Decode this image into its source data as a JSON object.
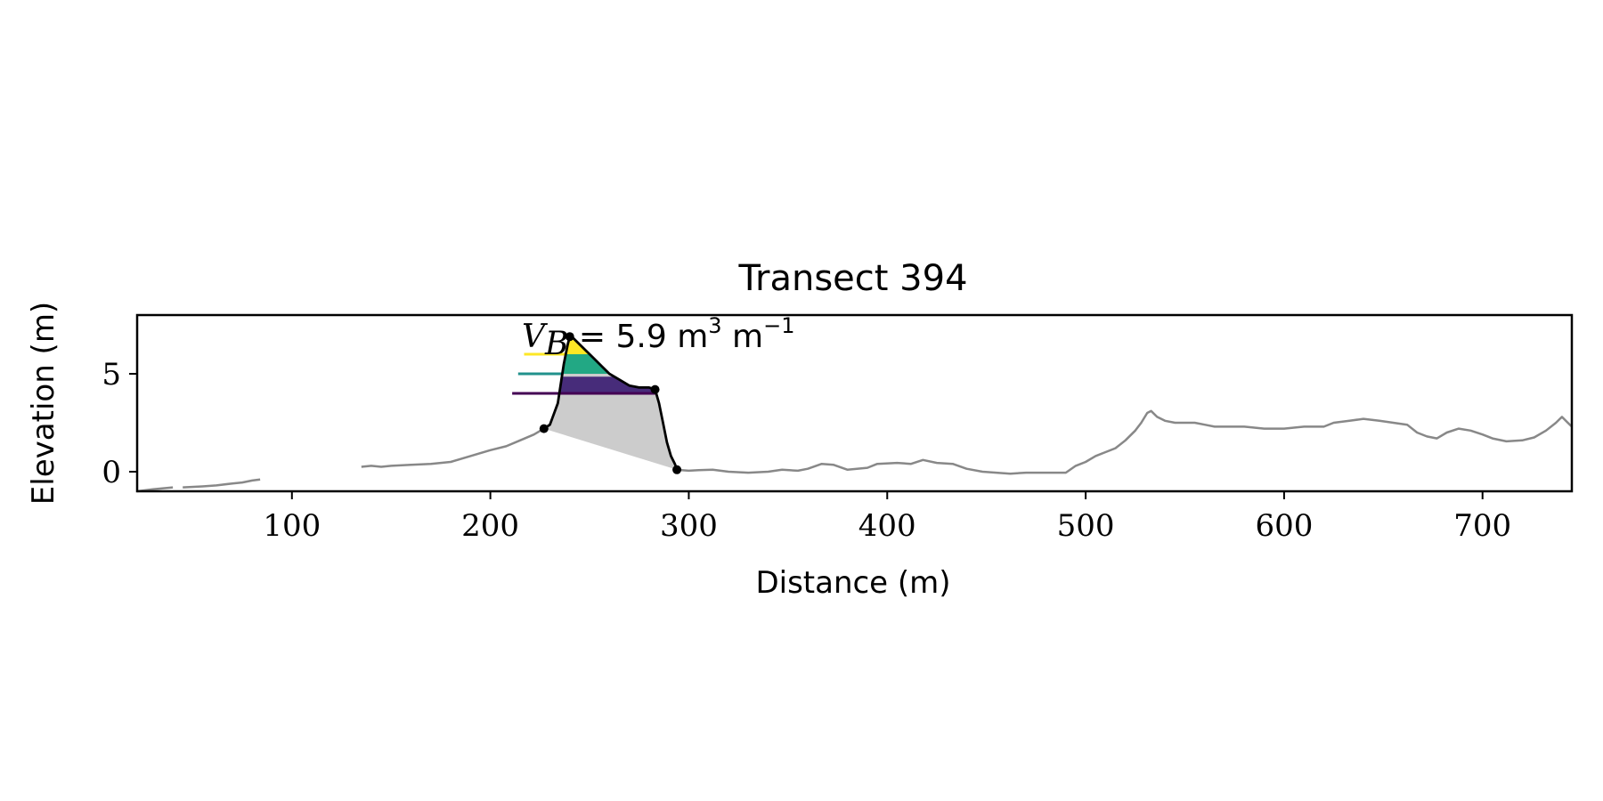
{
  "chart_data": {
    "type": "line",
    "title": "Transect 394",
    "xlabel": "Distance (m)",
    "ylabel": "Elevation (m)",
    "xlim": [
      22,
      745
    ],
    "ylim": [
      -1.0,
      8.0
    ],
    "xticks": [
      100,
      200,
      300,
      400,
      500,
      600,
      700
    ],
    "yticks": [
      0,
      5
    ],
    "grid": false,
    "legend": "none",
    "annotation": {
      "symbol_main": "V",
      "symbol_sub": "B",
      "text": " = 5.9 m",
      "exp1": "3",
      "mid": " m",
      "exp2": "−1"
    },
    "colors": {
      "profile": "#888888",
      "dune": "#000000",
      "base_fill": "#cccccc",
      "band_low": "#440154",
      "band_mid": "#21918c",
      "band_high": "#fde725",
      "band_fill_low": "#472c7a",
      "band_fill_mid": "#22a884",
      "band_fill_high": "#fde725"
    },
    "profile": {
      "segments": [
        [
          [
            22,
            -1.0
          ],
          [
            30,
            -0.9
          ],
          [
            40,
            -0.8
          ]
        ],
        [
          [
            45,
            -0.8
          ],
          [
            55,
            -0.75
          ],
          [
            62,
            -0.7
          ],
          [
            70,
            -0.6
          ],
          [
            75,
            -0.55
          ],
          [
            80,
            -0.45
          ],
          [
            84,
            -0.4
          ]
        ],
        [
          [
            135,
            0.25
          ],
          [
            140,
            0.3
          ],
          [
            145,
            0.25
          ],
          [
            150,
            0.3
          ],
          [
            160,
            0.35
          ],
          [
            170,
            0.4
          ],
          [
            180,
            0.5
          ],
          [
            190,
            0.8
          ],
          [
            200,
            1.1
          ],
          [
            208,
            1.3
          ],
          [
            215,
            1.6
          ],
          [
            222,
            1.9
          ],
          [
            227,
            2.2
          ]
        ],
        [
          [
            294,
            0.1
          ],
          [
            300,
            0.05
          ],
          [
            305,
            0.08
          ],
          [
            312,
            0.1
          ],
          [
            320,
            0.0
          ],
          [
            330,
            -0.05
          ],
          [
            340,
            0.0
          ],
          [
            347,
            0.1
          ],
          [
            355,
            0.05
          ],
          [
            360,
            0.15
          ],
          [
            367,
            0.4
          ],
          [
            373,
            0.35
          ],
          [
            380,
            0.1
          ],
          [
            390,
            0.2
          ],
          [
            395,
            0.4
          ],
          [
            405,
            0.45
          ],
          [
            412,
            0.4
          ],
          [
            418,
            0.6
          ],
          [
            425,
            0.45
          ],
          [
            433,
            0.4
          ],
          [
            440,
            0.15
          ],
          [
            448,
            0.0
          ],
          [
            455,
            -0.05
          ],
          [
            462,
            -0.1
          ],
          [
            470,
            -0.05
          ],
          [
            480,
            -0.05
          ],
          [
            490,
            -0.05
          ],
          [
            495,
            0.3
          ],
          [
            500,
            0.5
          ],
          [
            505,
            0.8
          ],
          [
            510,
            1.0
          ],
          [
            515,
            1.2
          ],
          [
            520,
            1.6
          ],
          [
            525,
            2.1
          ],
          [
            528,
            2.5
          ],
          [
            531,
            3.0
          ],
          [
            533,
            3.1
          ],
          [
            536,
            2.8
          ],
          [
            540,
            2.6
          ],
          [
            545,
            2.5
          ],
          [
            555,
            2.5
          ],
          [
            560,
            2.4
          ],
          [
            565,
            2.3
          ],
          [
            570,
            2.3
          ],
          [
            580,
            2.3
          ],
          [
            590,
            2.2
          ],
          [
            600,
            2.2
          ],
          [
            610,
            2.3
          ],
          [
            620,
            2.3
          ],
          [
            625,
            2.5
          ],
          [
            633,
            2.6
          ],
          [
            640,
            2.7
          ],
          [
            648,
            2.6
          ],
          [
            655,
            2.5
          ],
          [
            662,
            2.4
          ],
          [
            667,
            2.0
          ],
          [
            672,
            1.8
          ],
          [
            677,
            1.7
          ],
          [
            682,
            2.0
          ],
          [
            688,
            2.2
          ],
          [
            694,
            2.1
          ],
          [
            700,
            1.9
          ],
          [
            705,
            1.7
          ],
          [
            712,
            1.55
          ],
          [
            720,
            1.6
          ],
          [
            726,
            1.75
          ],
          [
            732,
            2.1
          ],
          [
            737,
            2.5
          ],
          [
            740,
            2.8
          ],
          [
            743,
            2.5
          ],
          [
            745,
            2.3
          ]
        ]
      ]
    },
    "dune": {
      "points": [
        [
          227,
          2.2
        ],
        [
          230,
          2.4
        ],
        [
          234,
          3.5
        ],
        [
          237,
          5.5
        ],
        [
          239,
          6.5
        ],
        [
          240,
          6.9
        ],
        [
          242,
          6.8
        ],
        [
          245,
          6.5
        ],
        [
          248,
          6.2
        ],
        [
          252,
          5.8
        ],
        [
          256,
          5.4
        ],
        [
          260,
          5.0
        ],
        [
          265,
          4.7
        ],
        [
          270,
          4.4
        ],
        [
          275,
          4.3
        ],
        [
          280,
          4.3
        ],
        [
          283,
          4.2
        ],
        [
          285,
          3.5
        ],
        [
          287,
          2.5
        ],
        [
          289,
          1.5
        ],
        [
          291,
          0.8
        ],
        [
          293,
          0.4
        ],
        [
          294,
          0.1
        ]
      ],
      "markers": [
        [
          227,
          2.2
        ],
        [
          240,
          6.9
        ],
        [
          283,
          4.2
        ],
        [
          294,
          0.1
        ]
      ],
      "base_line": [
        [
          227,
          2.2
        ],
        [
          294,
          0.1
        ]
      ]
    },
    "bands": [
      {
        "level": 4.0,
        "x_start": 211,
        "fill_top": 4.85
      },
      {
        "level": 5.0,
        "x_start": 214,
        "fill_top": 6.0
      },
      {
        "level": 6.0,
        "x_start": 217,
        "fill_top": 6.9
      }
    ]
  }
}
